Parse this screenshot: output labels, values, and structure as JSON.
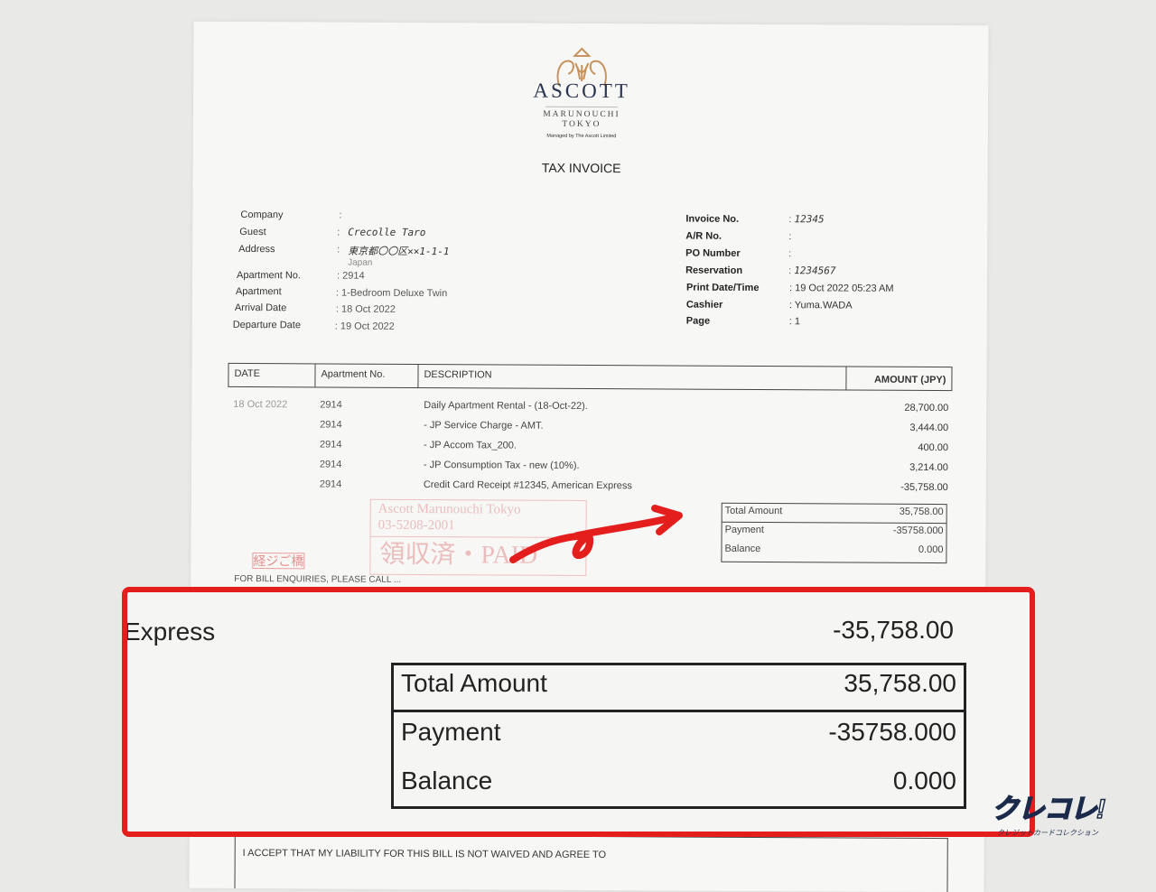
{
  "header": {
    "brand": "ASCOTT",
    "location": "MARUNOUCHI",
    "city": "TOKYO",
    "managed_by": "Managed by The Ascott Limited",
    "title": "TAX INVOICE"
  },
  "guest_info": [
    {
      "label": "Company",
      "value": ""
    },
    {
      "label": "Guest",
      "value": "Crecolle Taro"
    },
    {
      "label": "Address",
      "value": "東京都〇〇区××1-1-1",
      "value2": "Japan"
    },
    {
      "label": "Apartment No.",
      "value": "2914"
    },
    {
      "label": "Apartment",
      "value": "1-Bedroom Deluxe Twin"
    },
    {
      "label": "Arrival Date",
      "value": "18 Oct 2022"
    },
    {
      "label": "Departure Date",
      "value": "19 Oct 2022"
    }
  ],
  "invoice_info": [
    {
      "label": "Invoice No.",
      "value": "12345"
    },
    {
      "label": "A/R No.",
      "value": ""
    },
    {
      "label": "PO Number",
      "value": ""
    },
    {
      "label": "Reservation",
      "value": "1234567"
    },
    {
      "label": "Print Date/Time",
      "value": "19 Oct 2022 05:23 AM"
    },
    {
      "label": "Cashier",
      "value": "Yuma.WADA"
    },
    {
      "label": "Page",
      "value": "1"
    }
  ],
  "table": {
    "headers": [
      "DATE",
      "Apartment No.",
      "DESCRIPTION",
      "AMOUNT (JPY)"
    ],
    "rows": [
      {
        "date": "18 Oct 2022",
        "apt": "2914",
        "desc": "Daily Apartment Rental  - (18-Oct-22).",
        "amount": "28,700.00"
      },
      {
        "date": "",
        "apt": "2914",
        "desc": "- JP Service Charge - AMT.",
        "amount": "3,444.00"
      },
      {
        "date": "",
        "apt": "2914",
        "desc": "- JP Accom Tax_200.",
        "amount": "400.00"
      },
      {
        "date": "",
        "apt": "2914",
        "desc": "- JP Consumption Tax - new (10%).",
        "amount": "3,214.00"
      },
      {
        "date": "",
        "apt": "2914",
        "desc": "Credit Card Receipt #12345, American Express",
        "amount": "-35,758.00"
      }
    ]
  },
  "totals": [
    {
      "label": "Total Amount",
      "value": "35,758.00"
    },
    {
      "label": "Payment",
      "value": "-35758.000"
    },
    {
      "label": "Balance",
      "value": "0.000"
    }
  ],
  "stamp": {
    "line1": "Ascott Marunouchi Tokyo",
    "line2": "03-5208-2001",
    "line3": "領収済・PAID",
    "seal": "経ジご橋"
  },
  "footer": {
    "enquiries": "FOR BILL ENQUIRIES, PLEASE CALL ...",
    "liability": "I ACCEPT THAT MY LIABILITY FOR THIS BILL IS NOT WAIVED AND AGREE TO"
  },
  "zoom_overlay": {
    "partial_desc": "Express",
    "amount": "-35,758.00",
    "accent_color": "#e41d1d"
  },
  "watermark": {
    "brand": "クレコレ!",
    "sub": "クレジットカードコレクション"
  }
}
